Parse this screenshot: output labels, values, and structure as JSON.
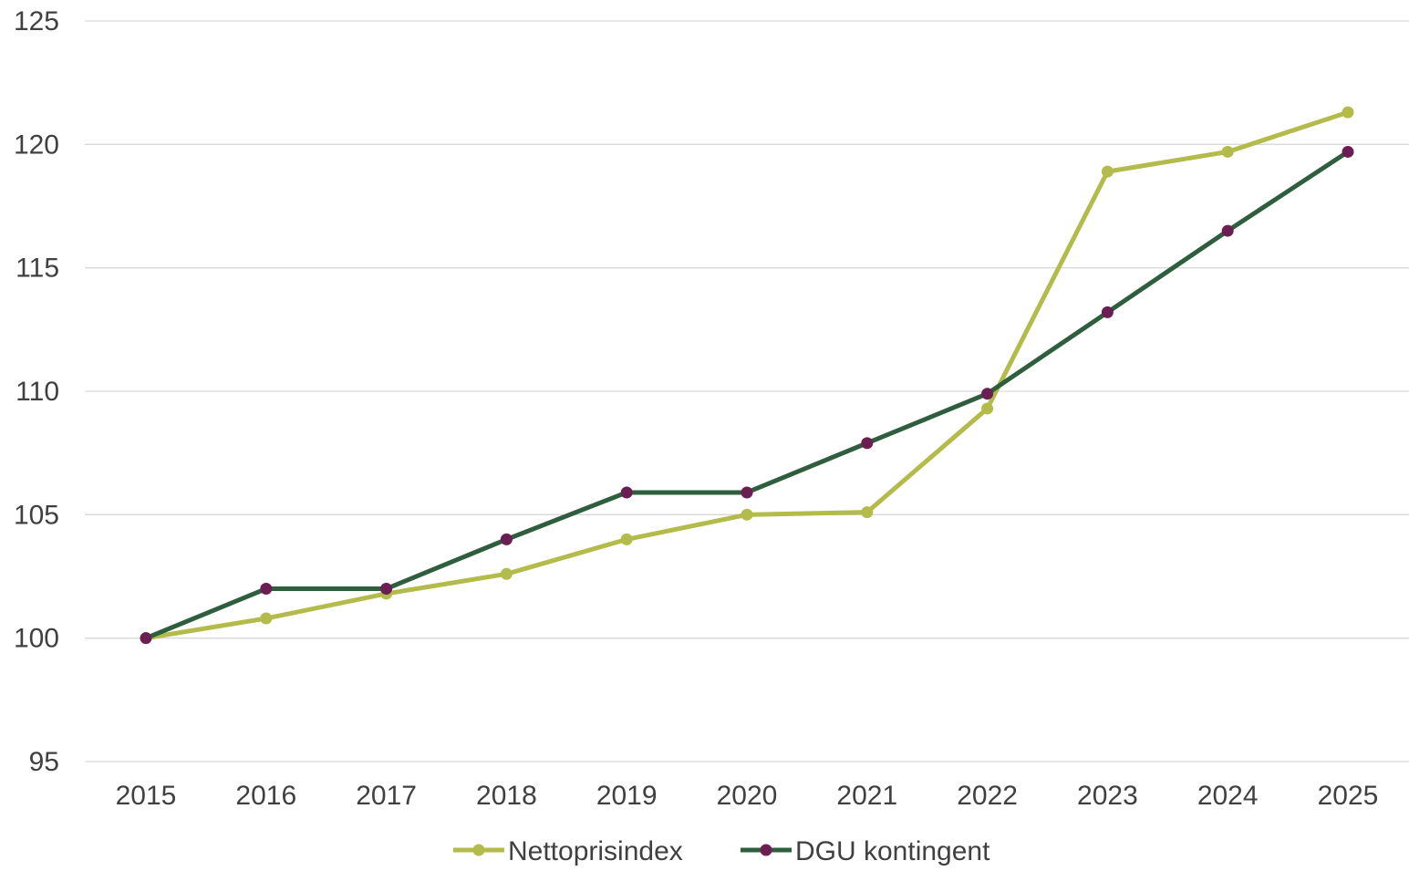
{
  "chart_data": {
    "type": "line",
    "categories": [
      "2015",
      "2016",
      "2017",
      "2018",
      "2019",
      "2020",
      "2021",
      "2022",
      "2023",
      "2024",
      "2025"
    ],
    "series": [
      {
        "name": "Nettoprisindex",
        "color": "#b3bb4b",
        "values": [
          100,
          100.8,
          101.8,
          102.6,
          104.0,
          105.0,
          105.1,
          109.3,
          118.9,
          119.7,
          121.3
        ]
      },
      {
        "name": "DGU kontingent",
        "color": "#2e5e3e",
        "marker_color": "#6b1e52",
        "values": [
          100,
          102.0,
          102.0,
          104.0,
          105.9,
          105.9,
          107.9,
          109.9,
          113.2,
          116.5,
          119.7
        ]
      }
    ],
    "yticks": [
      "95",
      "100",
      "105",
      "110",
      "115",
      "120",
      "125"
    ],
    "ylim": [
      95,
      125
    ],
    "grid": true,
    "legend": "bottom"
  }
}
